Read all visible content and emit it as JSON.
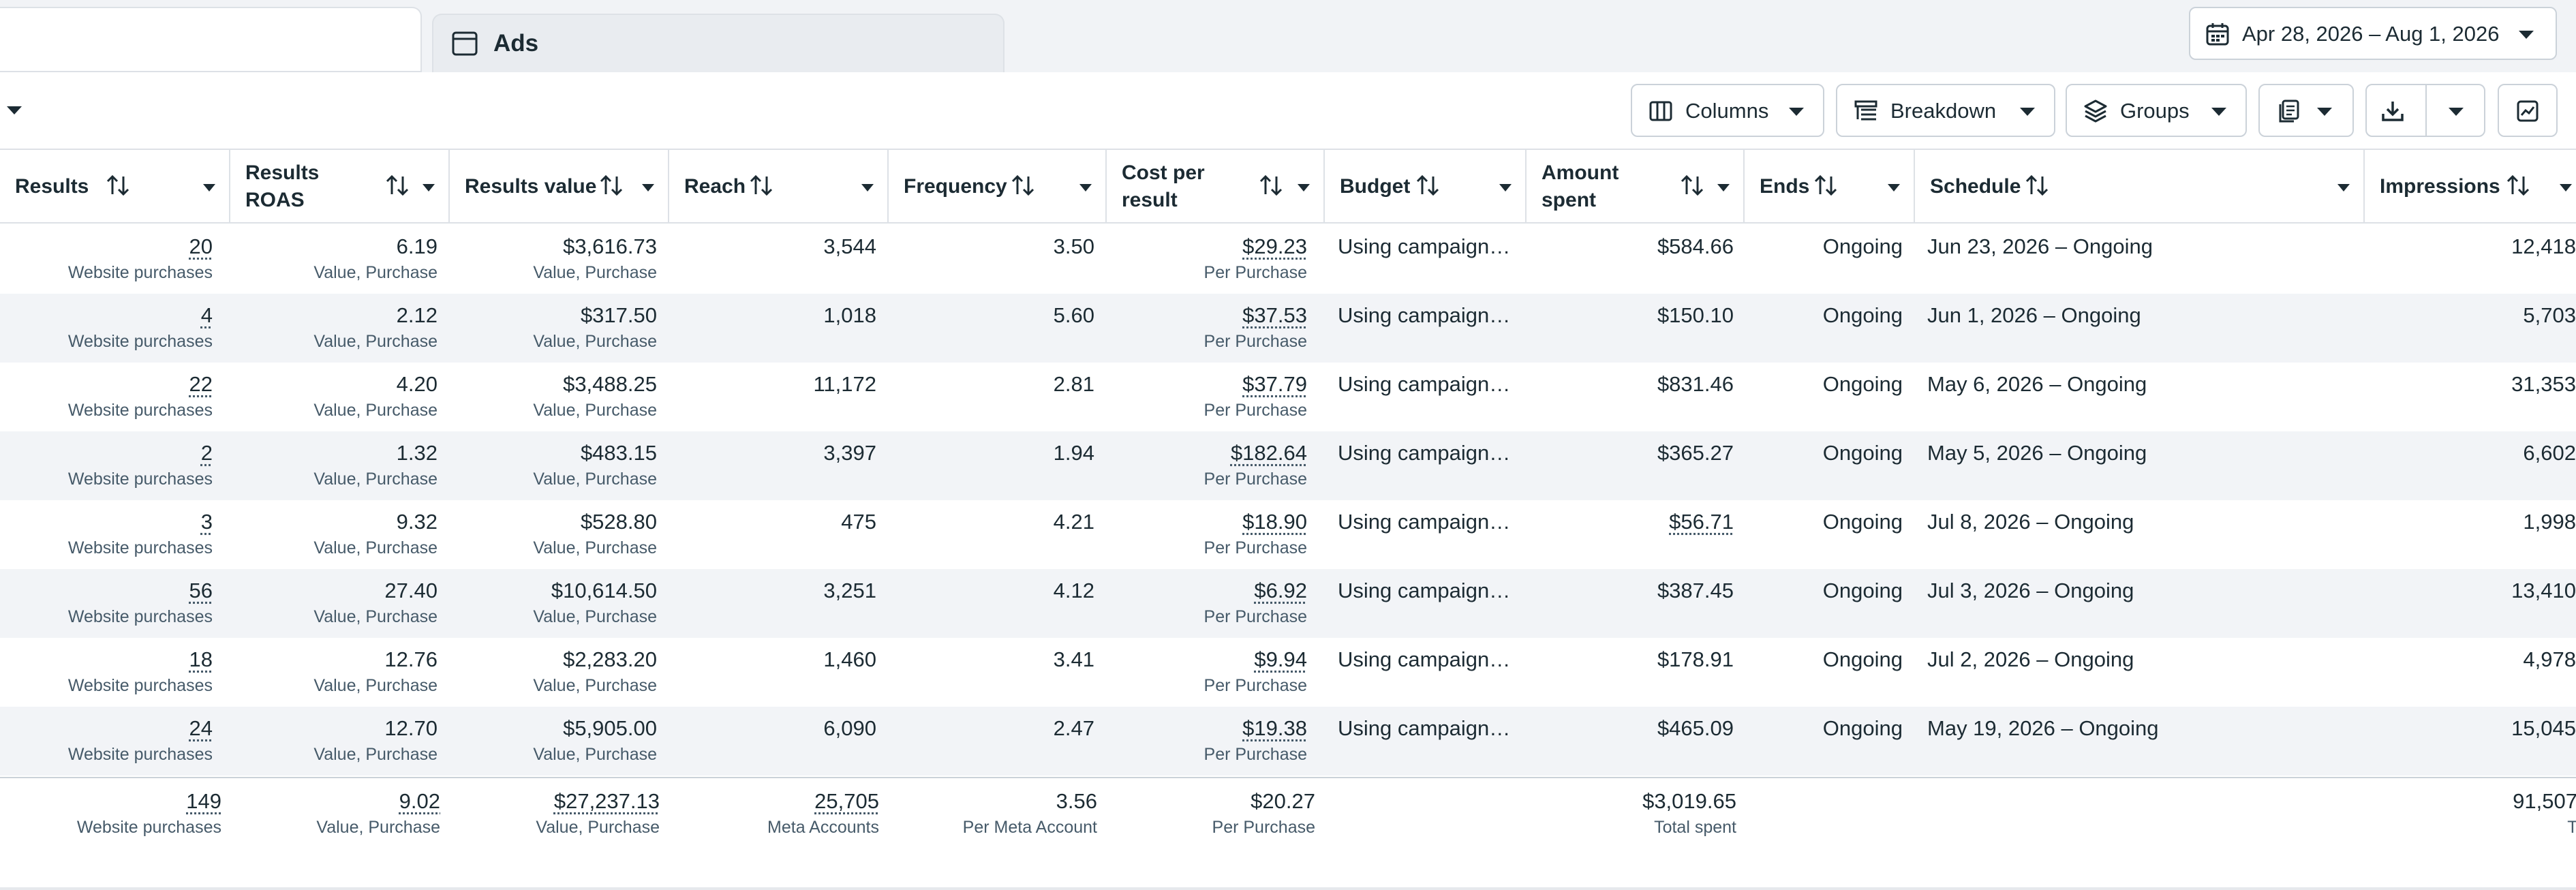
{
  "tabs": {
    "ads_label": "Ads"
  },
  "date_range": {
    "label": "Apr 28, 2026 – Aug 1, 2026"
  },
  "toolbar": {
    "columns": "Columns",
    "breakdown": "Breakdown",
    "groups": "Groups"
  },
  "columns": [
    {
      "label": "Results"
    },
    {
      "label": "Results ROAS",
      "line1": "Results",
      "line2": "ROAS"
    },
    {
      "label": "Results value"
    },
    {
      "label": "Reach"
    },
    {
      "label": "Frequency"
    },
    {
      "label": "Cost per result",
      "line1": "Cost per",
      "line2": "result"
    },
    {
      "label": "Budget"
    },
    {
      "label": "Amount spent",
      "line1": "Amount",
      "line2": "spent"
    },
    {
      "label": "Ends"
    },
    {
      "label": "Schedule"
    },
    {
      "label": "Impressions"
    }
  ],
  "rows": [
    {
      "results": "20",
      "results_sub": "Website purchases",
      "roas": "6.19",
      "roas_sub": "Value, Purchase",
      "value": "$3,616.73",
      "value_sub": "Value, Purchase",
      "reach": "3,544",
      "frequency": "3.50",
      "cpr": "$29.23",
      "cpr_sub": "Per Purchase",
      "budget": "Using campaign…",
      "spent": "$584.66",
      "ends": "Ongoing",
      "schedule": "Jun 23, 2026 – Ongoing",
      "impressions": "12,418"
    },
    {
      "results": "4",
      "results_sub": "Website purchases",
      "roas": "2.12",
      "roas_sub": "Value, Purchase",
      "value": "$317.50",
      "value_sub": "Value, Purchase",
      "reach": "1,018",
      "frequency": "5.60",
      "cpr": "$37.53",
      "cpr_sub": "Per Purchase",
      "budget": "Using campaign…",
      "spent": "$150.10",
      "ends": "Ongoing",
      "schedule": "Jun 1, 2026 – Ongoing",
      "impressions": "5,703"
    },
    {
      "results": "22",
      "results_sub": "Website purchases",
      "roas": "4.20",
      "roas_sub": "Value, Purchase",
      "value": "$3,488.25",
      "value_sub": "Value, Purchase",
      "reach": "11,172",
      "frequency": "2.81",
      "cpr": "$37.79",
      "cpr_sub": "Per Purchase",
      "budget": "Using campaign…",
      "spent": "$831.46",
      "ends": "Ongoing",
      "schedule": "May 6, 2026 – Ongoing",
      "impressions": "31,353"
    },
    {
      "results": "2",
      "results_sub": "Website purchases",
      "roas": "1.32",
      "roas_sub": "Value, Purchase",
      "value": "$483.15",
      "value_sub": "Value, Purchase",
      "reach": "3,397",
      "frequency": "1.94",
      "cpr": "$182.64",
      "cpr_sub": "Per Purchase",
      "budget": "Using campaign…",
      "spent": "$365.27",
      "ends": "Ongoing",
      "schedule": "May 5, 2026 – Ongoing",
      "impressions": "6,602"
    },
    {
      "results": "3",
      "results_sub": "Website purchases",
      "roas": "9.32",
      "roas_sub": "Value, Purchase",
      "value": "$528.80",
      "value_sub": "Value, Purchase",
      "reach": "475",
      "frequency": "4.21",
      "cpr": "$18.90",
      "cpr_sub": "Per Purchase",
      "budget": "Using campaign…",
      "spent": "$56.71",
      "ends": "Ongoing",
      "schedule": "Jul 8, 2026 – Ongoing",
      "impressions": "1,998"
    },
    {
      "results": "56",
      "results_sub": "Website purchases",
      "roas": "27.40",
      "roas_sub": "Value, Purchase",
      "value": "$10,614.50",
      "value_sub": "Value, Purchase",
      "reach": "3,251",
      "frequency": "4.12",
      "cpr": "$6.92",
      "cpr_sub": "Per Purchase",
      "budget": "Using campaign…",
      "spent": "$387.45",
      "ends": "Ongoing",
      "schedule": "Jul 3, 2026 – Ongoing",
      "impressions": "13,410"
    },
    {
      "results": "18",
      "results_sub": "Website purchases",
      "roas": "12.76",
      "roas_sub": "Value, Purchase",
      "value": "$2,283.20",
      "value_sub": "Value, Purchase",
      "reach": "1,460",
      "frequency": "3.41",
      "cpr": "$9.94",
      "cpr_sub": "Per Purchase",
      "budget": "Using campaign…",
      "spent": "$178.91",
      "ends": "Ongoing",
      "schedule": "Jul 2, 2026 – Ongoing",
      "impressions": "4,978"
    },
    {
      "results": "24",
      "results_sub": "Website purchases",
      "roas": "12.70",
      "roas_sub": "Value, Purchase",
      "value": "$5,905.00",
      "value_sub": "Value, Purchase",
      "reach": "6,090",
      "frequency": "2.47",
      "cpr": "$19.38",
      "cpr_sub": "Per Purchase",
      "budget": "Using campaign…",
      "spent": "$465.09",
      "ends": "Ongoing",
      "schedule": "May 19, 2026 – Ongoing",
      "impressions": "15,045"
    }
  ],
  "totals": {
    "results": "149",
    "results_sub": "Website purchases",
    "roas": "9.02",
    "roas_sub": "Value, Purchase",
    "value": "$27,237.13",
    "value_sub": "Value, Purchase",
    "reach": "25,705",
    "reach_sub": "Meta Accounts",
    "frequency": "3.56",
    "frequency_sub": "Per Meta Account",
    "cpr": "$20.27",
    "cpr_sub": "Per Purchase",
    "spent": "$3,019.65",
    "spent_sub": "Total spent",
    "impressions": "91,507",
    "impressions_sub": "Total"
  },
  "icons": [
    "calendar-icon",
    "columns-icon",
    "breakdown-icon",
    "groups-icon",
    "reports-icon",
    "download-icon",
    "chart-icon",
    "window-icon",
    "sort-icon"
  ]
}
